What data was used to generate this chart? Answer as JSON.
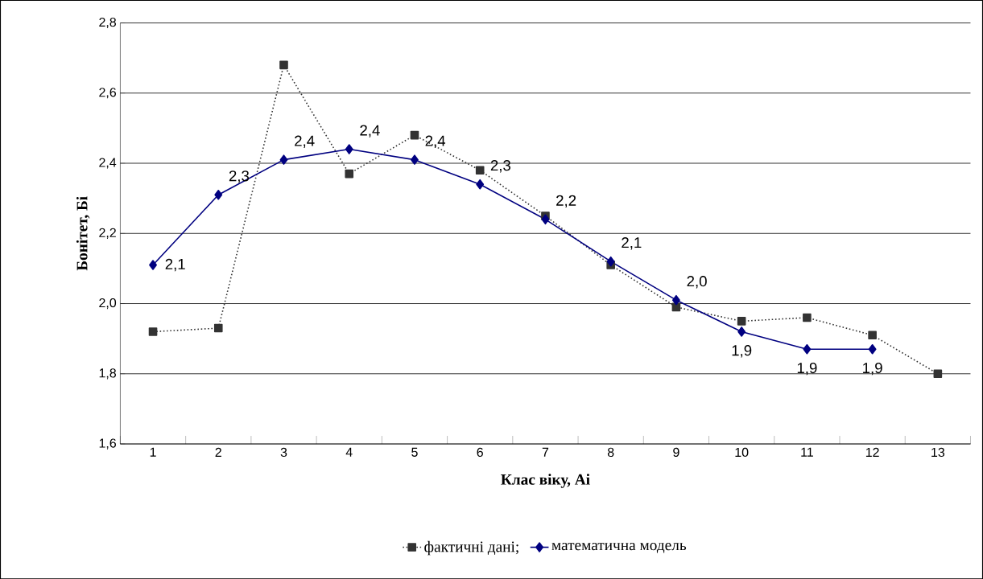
{
  "chart_data": {
    "type": "line",
    "xlabel": "Клас віку, Аі",
    "ylabel": "Бонітет, Бі",
    "categories": [
      "1",
      "2",
      "3",
      "4",
      "5",
      "6",
      "7",
      "8",
      "9",
      "10",
      "11",
      "12",
      "13"
    ],
    "ylim": [
      1.6,
      2.8
    ],
    "yticks": [
      {
        "value": 1.6,
        "label": "1,6"
      },
      {
        "value": 1.8,
        "label": "1,8"
      },
      {
        "value": 2.0,
        "label": "2,0"
      },
      {
        "value": 2.2,
        "label": "2,2"
      },
      {
        "value": 2.4,
        "label": "2,4"
      },
      {
        "value": 2.6,
        "label": "2,6"
      },
      {
        "value": 2.8,
        "label": "2,8"
      }
    ],
    "grid": "y",
    "legend": "bottom",
    "series": [
      {
        "name": "фактичні дані;",
        "color": "#333333",
        "marker": "square",
        "line_style": "dotted",
        "values": [
          1.92,
          1.93,
          2.68,
          2.37,
          2.48,
          2.38,
          2.25,
          2.11,
          1.99,
          1.95,
          1.96,
          1.91,
          1.8
        ]
      },
      {
        "name": "математична модель",
        "color": "#000080",
        "marker": "diamond",
        "line_style": "solid",
        "values": [
          2.11,
          2.31,
          2.41,
          2.44,
          2.41,
          2.34,
          2.24,
          2.12,
          2.01,
          1.92,
          1.87,
          1.87,
          null
        ],
        "value_labels": [
          "2,1",
          "2,3",
          "2,4",
          "2,4",
          "2,4",
          "2,3",
          "2,2",
          "2,1",
          "2,0",
          "1,9",
          "1,9",
          "1,9",
          null
        ]
      }
    ]
  }
}
